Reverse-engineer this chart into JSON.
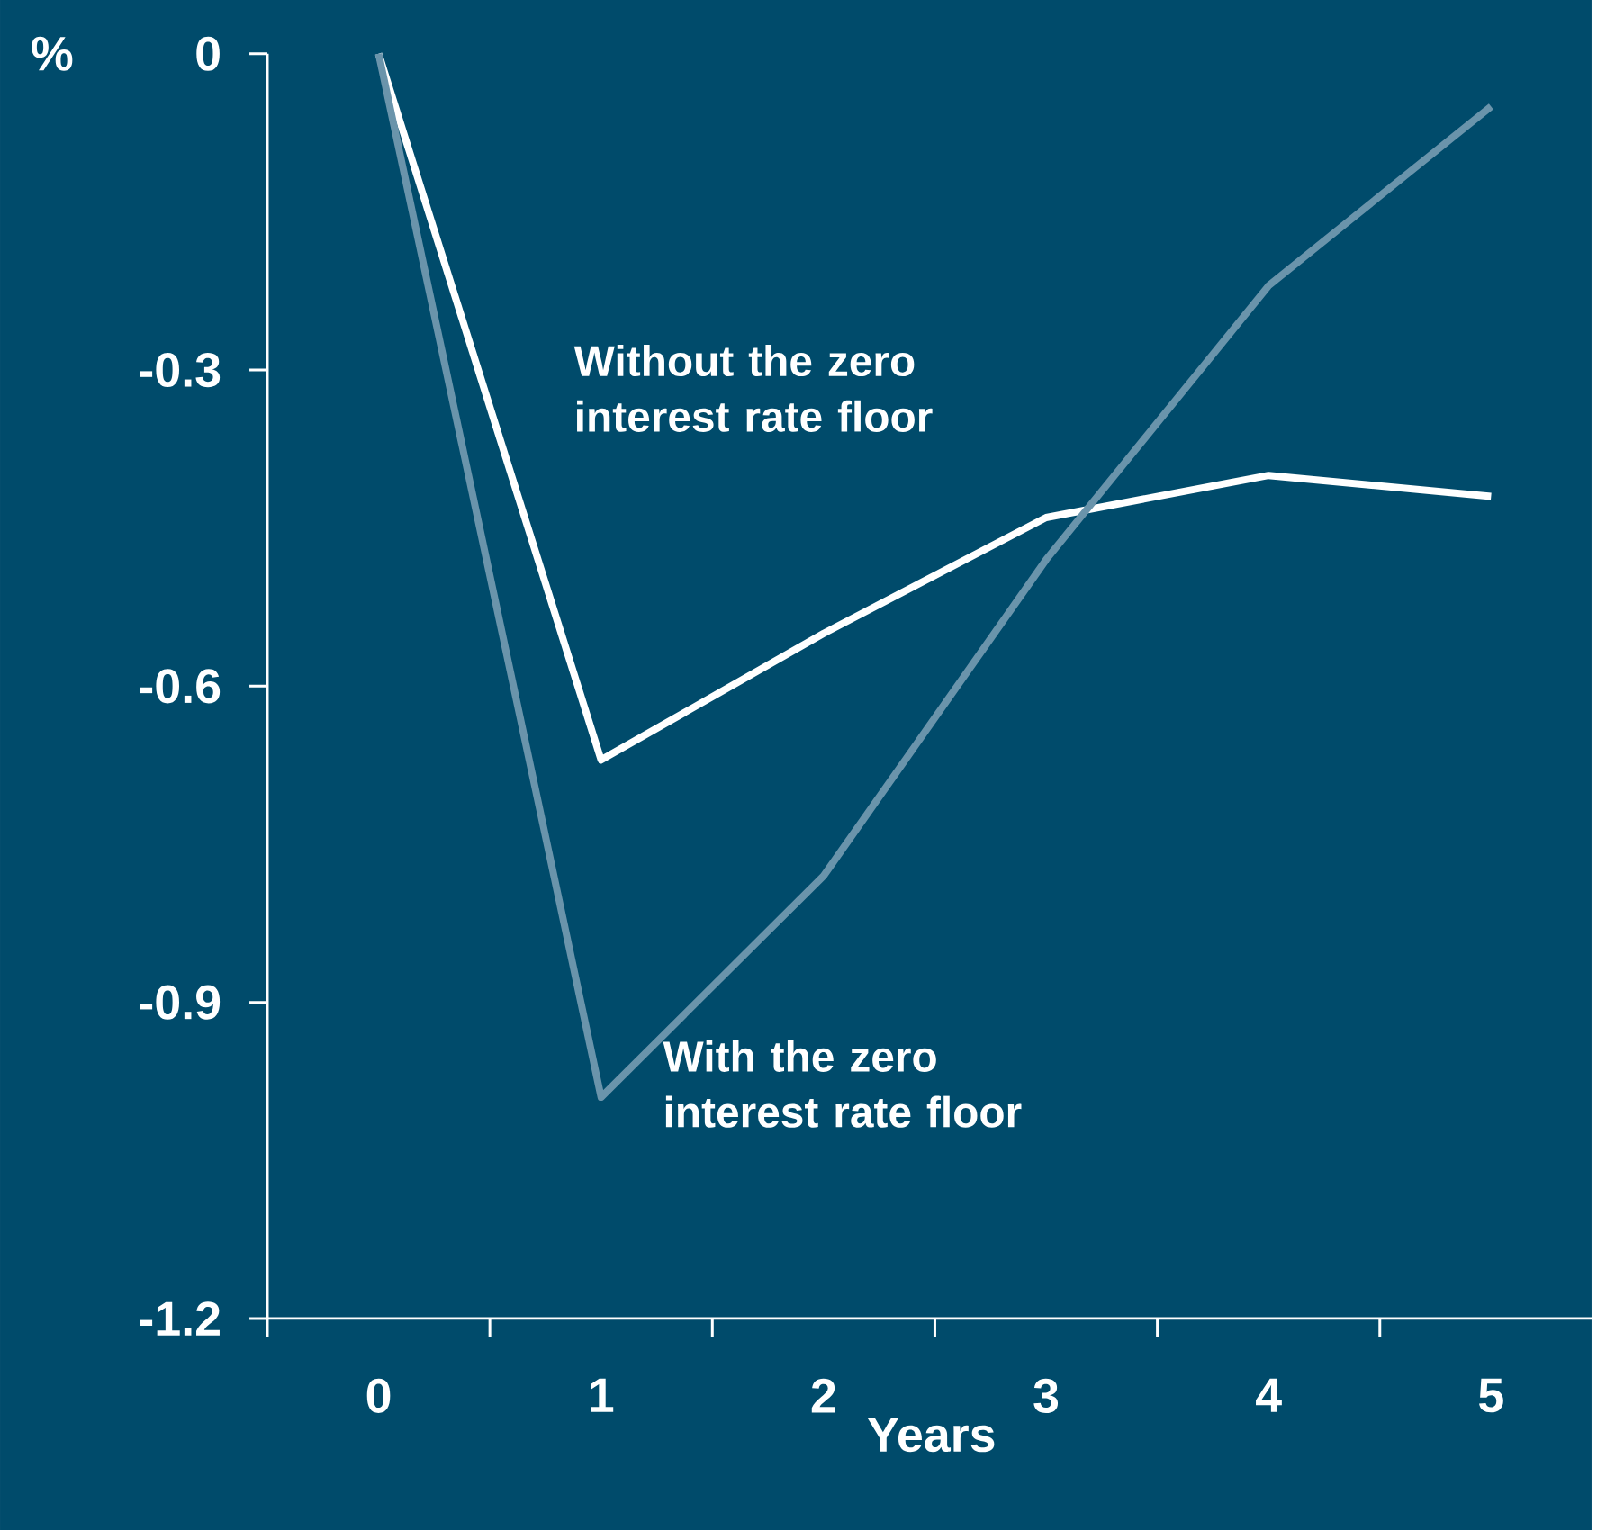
{
  "chart_data": {
    "type": "line",
    "xlabel": "Years",
    "ylabel": "%",
    "categories": [
      "0",
      "1",
      "2",
      "3",
      "4",
      "5"
    ],
    "series": [
      {
        "name": "Without the zero interest rate floor",
        "color": "#ffffff",
        "values": [
          0,
          -0.67,
          -0.55,
          -0.44,
          -0.4,
          -0.42
        ]
      },
      {
        "name": "With the zero interest rate floor",
        "color": "#6a94ab",
        "values": [
          0,
          -0.99,
          -0.78,
          -0.48,
          -0.22,
          -0.05
        ]
      }
    ],
    "ylim": [
      -1.2,
      0
    ],
    "yticks": [
      0,
      -0.3,
      -0.6,
      -0.9,
      -1.2
    ]
  }
}
